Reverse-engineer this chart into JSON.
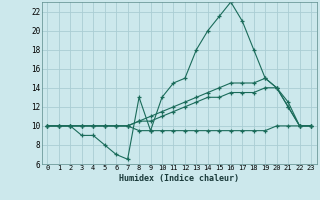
{
  "xlabel": "Humidex (Indice chaleur)",
  "background_color": "#cce8ec",
  "grid_color": "#aacdd4",
  "line_color": "#1a6b5a",
  "xlim": [
    -0.5,
    23.5
  ],
  "ylim": [
    6,
    23
  ],
  "yticks": [
    6,
    8,
    10,
    12,
    14,
    16,
    18,
    20,
    22
  ],
  "xticks": [
    0,
    1,
    2,
    3,
    4,
    5,
    6,
    7,
    8,
    9,
    10,
    11,
    12,
    13,
    14,
    15,
    16,
    17,
    18,
    19,
    20,
    21,
    22,
    23
  ],
  "series": [
    {
      "x": [
        0,
        1,
        2,
        3,
        4,
        5,
        6,
        7,
        8,
        9,
        10,
        11,
        12,
        13,
        14,
        15,
        16,
        17,
        18,
        19,
        20,
        21,
        22,
        23
      ],
      "y": [
        10,
        10,
        10,
        9,
        9,
        8,
        7,
        6.5,
        13,
        9.5,
        13,
        14.5,
        15,
        18,
        20,
        21.5,
        23,
        21,
        18,
        15,
        14,
        12,
        10,
        10
      ]
    },
    {
      "x": [
        0,
        1,
        2,
        3,
        4,
        5,
        6,
        7,
        8,
        9,
        10,
        11,
        12,
        13,
        14,
        15,
        16,
        17,
        18,
        19,
        20,
        21,
        22,
        23
      ],
      "y": [
        10,
        10,
        10,
        10,
        10,
        10,
        10,
        10,
        10.5,
        11,
        11.5,
        12,
        12.5,
        13,
        13.5,
        14,
        14.5,
        14.5,
        14.5,
        15,
        14,
        12.5,
        10,
        10
      ]
    },
    {
      "x": [
        0,
        1,
        2,
        3,
        4,
        5,
        6,
        7,
        8,
        9,
        10,
        11,
        12,
        13,
        14,
        15,
        16,
        17,
        18,
        19,
        20,
        21,
        22,
        23
      ],
      "y": [
        10,
        10,
        10,
        10,
        10,
        10,
        10,
        10,
        10.5,
        10.5,
        11,
        11.5,
        12,
        12.5,
        13,
        13,
        13.5,
        13.5,
        13.5,
        14,
        14,
        12,
        10,
        10
      ]
    },
    {
      "x": [
        0,
        1,
        2,
        3,
        4,
        5,
        6,
        7,
        8,
        9,
        10,
        11,
        12,
        13,
        14,
        15,
        16,
        17,
        18,
        19,
        20,
        21,
        22,
        23
      ],
      "y": [
        10,
        10,
        10,
        10,
        10,
        10,
        10,
        10,
        9.5,
        9.5,
        9.5,
        9.5,
        9.5,
        9.5,
        9.5,
        9.5,
        9.5,
        9.5,
        9.5,
        9.5,
        10,
        10,
        10,
        10
      ]
    }
  ]
}
